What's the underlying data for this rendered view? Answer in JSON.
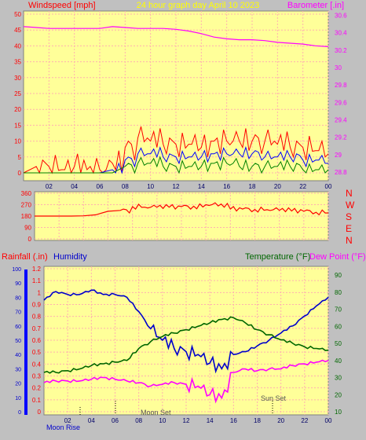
{
  "top_chart": {
    "title": "24 hour graph day   April 10 2023",
    "left_label": "Windspeed [mph]",
    "right_label": "Barometer [.in]",
    "x_ticks": [
      "02",
      "04",
      "06",
      "08",
      "10",
      "12",
      "14",
      "16",
      "18",
      "20",
      "22",
      "00"
    ],
    "left_ticks": [
      "50",
      "45",
      "40",
      "35",
      "30",
      "25",
      "20",
      "15",
      "10",
      "5",
      "0"
    ],
    "right_ticks": [
      "30.6",
      "30.4",
      "30.2",
      "30",
      "29.8",
      "29.6",
      "29.4",
      "29.2",
      "29",
      "28.8"
    ],
    "ylim_left": [
      0,
      50
    ],
    "ylim_right": [
      28.7,
      30.65
    ]
  },
  "direction_chart": {
    "left_ticks": [
      "360",
      "270",
      "180",
      "90",
      "0"
    ],
    "right_letters": [
      "N",
      "W",
      "S",
      "E",
      "N"
    ],
    "ylim": [
      0,
      360
    ]
  },
  "bottom_chart": {
    "rain_label": "Rainfall (.in)",
    "humidity_label": "Humidity",
    "temp_label": "Temperature (°F)",
    "dew_label": "Dew Point (°F)",
    "humidity_ticks": [
      "100",
      "90",
      "80",
      "70",
      "60",
      "50",
      "40",
      "30",
      "20",
      "10",
      "0"
    ],
    "rain_ticks": [
      "1.2",
      "1.1",
      "1",
      "0.9",
      "0.8",
      "0.7",
      "0.6",
      "0.5",
      "0.4",
      "0.3",
      "0.2",
      "0.1",
      "0"
    ],
    "temp_ticks": [
      "90",
      "80",
      "70",
      "60",
      "50",
      "40",
      "30",
      "20",
      "10"
    ],
    "x_ticks": [
      "02",
      "04",
      "06",
      "08",
      "10",
      "12",
      "14",
      "16",
      "18",
      "20",
      "22",
      "00"
    ],
    "annotations": {
      "moon_rise": "Moon Rise",
      "moon_set": "Moon Set",
      "sun_set": "Sun Set"
    },
    "ylim_temp": [
      10,
      90
    ],
    "ylim_humidity": [
      0,
      100
    ]
  },
  "colors": {
    "plot_bg": "#ffff99",
    "grid": "#ffb0b0",
    "wind_gust": "#ff0000",
    "wind_avg": "#0000ff",
    "wind_low": "#008000",
    "barometer": "#ff00ff",
    "direction": "#ff0000",
    "humidity": "#0000cc",
    "temperature": "#006600",
    "dewpoint": "#ff00ff",
    "rain_axis": "#0000ff"
  },
  "chart_data": [
    {
      "type": "line",
      "title": "24 hour graph day   April 10 2023",
      "xlabel": "",
      "ylabel": "Windspeed [mph]",
      "y2label": "Barometer [.in]",
      "ylim": [
        0,
        50
      ],
      "y2lim": [
        28.7,
        30.65
      ],
      "x": [
        0,
        1,
        2,
        3,
        4,
        5,
        6,
        7,
        8,
        9,
        10,
        11,
        12,
        13,
        14,
        15,
        16,
        17,
        18,
        19,
        20,
        21,
        22,
        23,
        24
      ],
      "series": [
        {
          "name": "Windspeed gust",
          "axis": "left",
          "values": [
            0,
            2,
            2,
            1,
            2,
            1,
            1,
            3,
            8,
            11,
            10,
            9,
            9,
            9,
            8,
            10,
            10,
            10,
            10,
            10,
            9,
            8,
            8,
            7,
            6
          ]
        },
        {
          "name": "Windspeed average",
          "axis": "left",
          "values": [
            0,
            0,
            0,
            0,
            0,
            0,
            0,
            1,
            4,
            6,
            6,
            5,
            5,
            5,
            5,
            6,
            6,
            6,
            6,
            5,
            5,
            5,
            4,
            4,
            3
          ]
        },
        {
          "name": "Windspeed low",
          "axis": "left",
          "values": [
            0,
            0,
            0,
            0,
            0,
            0,
            0,
            0,
            2,
            3,
            3,
            2,
            2,
            2,
            2,
            3,
            3,
            2,
            2,
            2,
            2,
            2,
            1,
            1,
            1
          ]
        },
        {
          "name": "Barometer",
          "axis": "right",
          "values": [
            30.47,
            30.46,
            30.45,
            30.45,
            30.45,
            30.45,
            30.45,
            30.47,
            30.46,
            30.45,
            30.45,
            30.45,
            30.44,
            30.42,
            30.39,
            30.35,
            30.33,
            30.32,
            30.32,
            30.31,
            30.29,
            30.28,
            30.27,
            30.25,
            30.24
          ]
        }
      ]
    },
    {
      "type": "line",
      "ylabel": "",
      "ylim": [
        0,
        360
      ],
      "x": [
        0,
        1,
        2,
        3,
        4,
        5,
        6,
        7,
        8,
        9,
        10,
        11,
        12,
        13,
        14,
        15,
        16,
        17,
        18,
        19,
        20,
        21,
        22,
        23,
        24
      ],
      "series": [
        {
          "name": "Wind direction",
          "values": [
            180,
            180,
            180,
            180,
            182,
            190,
            218,
            225,
            255,
            250,
            250,
            250,
            255,
            258,
            270,
            260,
            235,
            235,
            232,
            230,
            225,
            220,
            218,
            210,
            205
          ]
        }
      ]
    },
    {
      "type": "line",
      "ylabel": "Humidity",
      "y2label": "Temperature (°F)",
      "ylim": [
        0,
        100
      ],
      "y2lim": [
        10,
        90
      ],
      "x": [
        0,
        1,
        2,
        3,
        4,
        5,
        6,
        7,
        8,
        9,
        10,
        11,
        12,
        13,
        14,
        15,
        16,
        17,
        18,
        19,
        20,
        21,
        22,
        23,
        24
      ],
      "series": [
        {
          "name": "Humidity",
          "axis": "humidity",
          "values": [
            78,
            84,
            82,
            82,
            85,
            82,
            82,
            80,
            70,
            58,
            50,
            44,
            42,
            40,
            34,
            30,
            40,
            42,
            46,
            50,
            55,
            60,
            67,
            74,
            80
          ]
        },
        {
          "name": "Temperature (°F)",
          "axis": "temp",
          "values": [
            33,
            33,
            34,
            35,
            37,
            38,
            39,
            40,
            47,
            51,
            54,
            56,
            58,
            60,
            62,
            64,
            65,
            62,
            58,
            55,
            52,
            50,
            48,
            47,
            46
          ]
        },
        {
          "name": "Dew Point (°F)",
          "axis": "temp",
          "values": [
            27,
            28,
            28,
            28,
            29,
            30,
            29,
            28,
            27,
            25,
            26,
            27,
            26,
            25,
            20,
            18,
            33,
            35,
            34,
            35,
            35,
            37,
            38,
            39,
            40
          ]
        }
      ]
    }
  ]
}
